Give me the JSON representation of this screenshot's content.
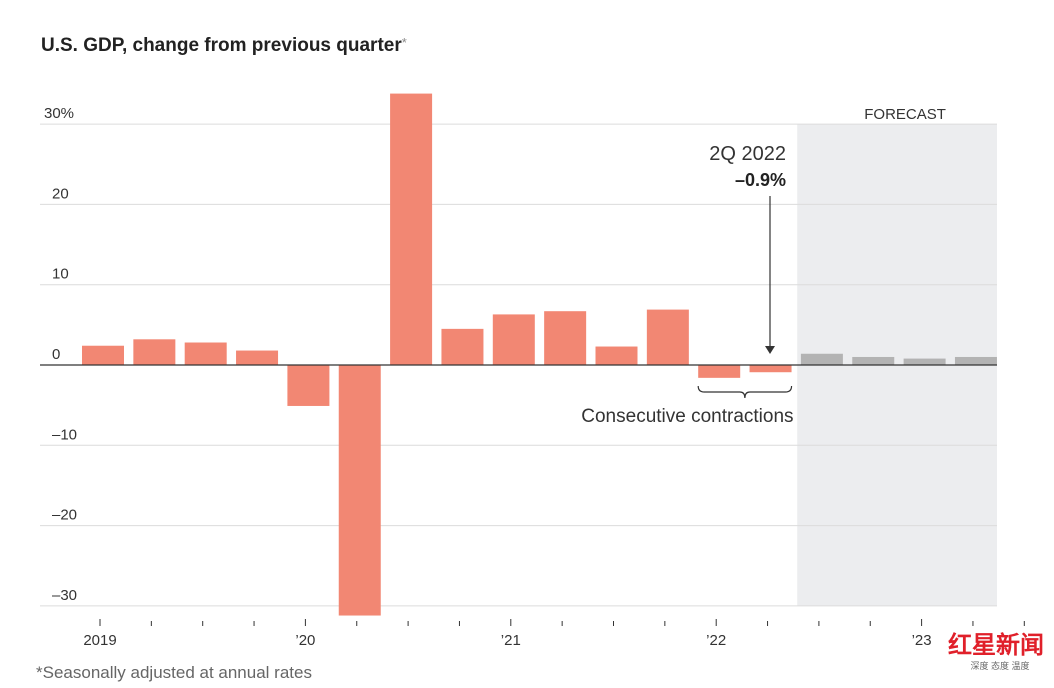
{
  "chart_data": {
    "type": "bar",
    "title": "U.S. GDP, change from previous quarter",
    "title_mark": "*",
    "footnote": "*Seasonally adjusted at annual rates",
    "ylim": [
      -30,
      30
    ],
    "yticks": [
      30,
      20,
      10,
      0,
      -10,
      -20,
      -30
    ],
    "ytick_labels": [
      "30%",
      "20",
      "10",
      "0",
      "–10",
      "–20",
      "–30"
    ],
    "grid": true,
    "x_tick_labels": [
      "2019",
      "’20",
      "’21",
      "’22",
      "’23"
    ],
    "categories": [
      "2019 Q1",
      "2019 Q2",
      "2019 Q3",
      "2019 Q4",
      "2020 Q1",
      "2020 Q2",
      "2020 Q3",
      "2020 Q4",
      "2021 Q1",
      "2021 Q2",
      "2021 Q3",
      "2021 Q4",
      "2022 Q1",
      "2022 Q2",
      "2022 Q3",
      "2022 Q4",
      "2023 Q1",
      "2023 Q2"
    ],
    "values": [
      2.4,
      3.2,
      2.8,
      1.8,
      -5.1,
      -31.2,
      33.8,
      4.5,
      6.3,
      6.7,
      2.3,
      6.9,
      -1.6,
      -0.9,
      1.4,
      1.0,
      0.8,
      1.0
    ],
    "forecast_from_index": 14,
    "forecast_label": "FORECAST",
    "annotation": {
      "label": "2Q 2022",
      "value": "–0.9%"
    },
    "bracket_label": "Consecutive contractions",
    "colors": {
      "actual": "#f28773",
      "forecast": "#b3b3b3",
      "forecast_bg": "#ecedef",
      "grid": "#dcdcdc",
      "zero": "#333333"
    }
  },
  "watermark": {
    "text": "红星新闻",
    "sub": "深度 态度 温度"
  }
}
